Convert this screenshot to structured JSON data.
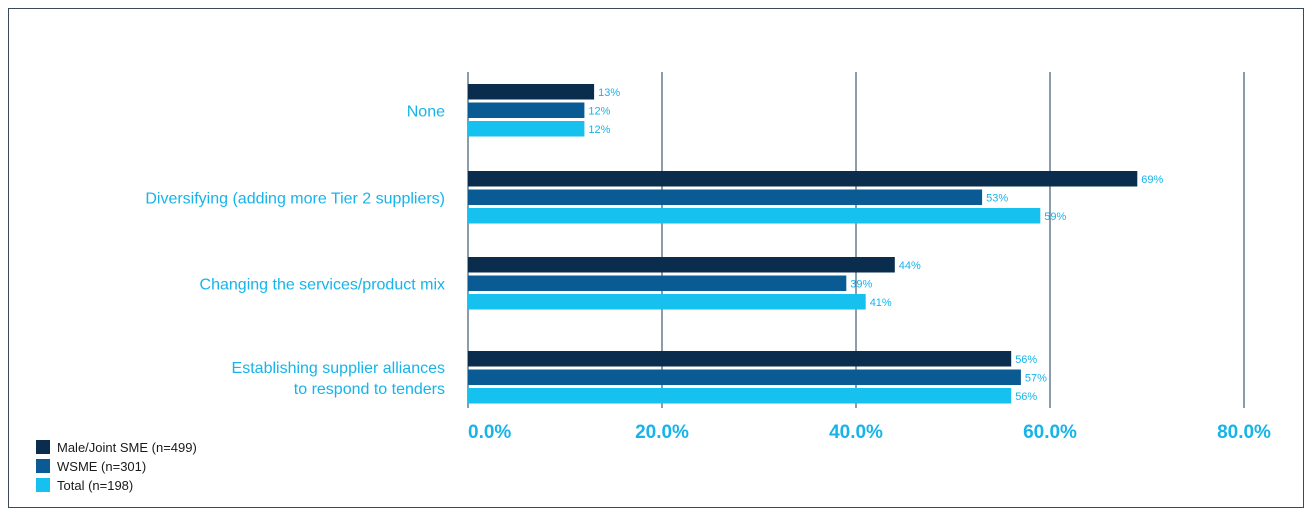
{
  "chart_data": {
    "type": "bar",
    "orientation": "horizontal",
    "categories": [
      "None",
      "Diversifying (adding more Tier 2 suppliers)",
      "Changing the services/product mix",
      "Establishing supplier alliances to respond to tenders"
    ],
    "category_display_lines": [
      [
        "None"
      ],
      [
        "Diversifying (adding more Tier 2 suppliers)"
      ],
      [
        "Changing the services/product mix"
      ],
      [
        "Establishing supplier alliances",
        "to respond to tenders"
      ]
    ],
    "series": [
      {
        "name": "Male/Joint SME (n=499)",
        "color": "#0a2d4d",
        "values": [
          13,
          69,
          44,
          56
        ],
        "labels": [
          "13%",
          "69%",
          "44%",
          "56%"
        ]
      },
      {
        "name": "WSME (n=301)",
        "color": "#0a5b93",
        "values": [
          12,
          53,
          39,
          57
        ],
        "labels": [
          "12%",
          "53%",
          "39%",
          "57%"
        ]
      },
      {
        "name": "Total (n=198)",
        "color": "#16c1ef",
        "values": [
          12,
          59,
          41,
          56
        ],
        "labels": [
          "12%",
          "59%",
          "41%",
          "56%"
        ]
      }
    ],
    "xlim": [
      0,
      80
    ],
    "x_ticks": [
      0,
      20,
      40,
      60,
      80
    ],
    "x_tick_labels": [
      "0.0%",
      "20.0%",
      "40.0%",
      "60.0%",
      "80.0%"
    ],
    "grid": true,
    "legend_position": "bottom-left"
  }
}
